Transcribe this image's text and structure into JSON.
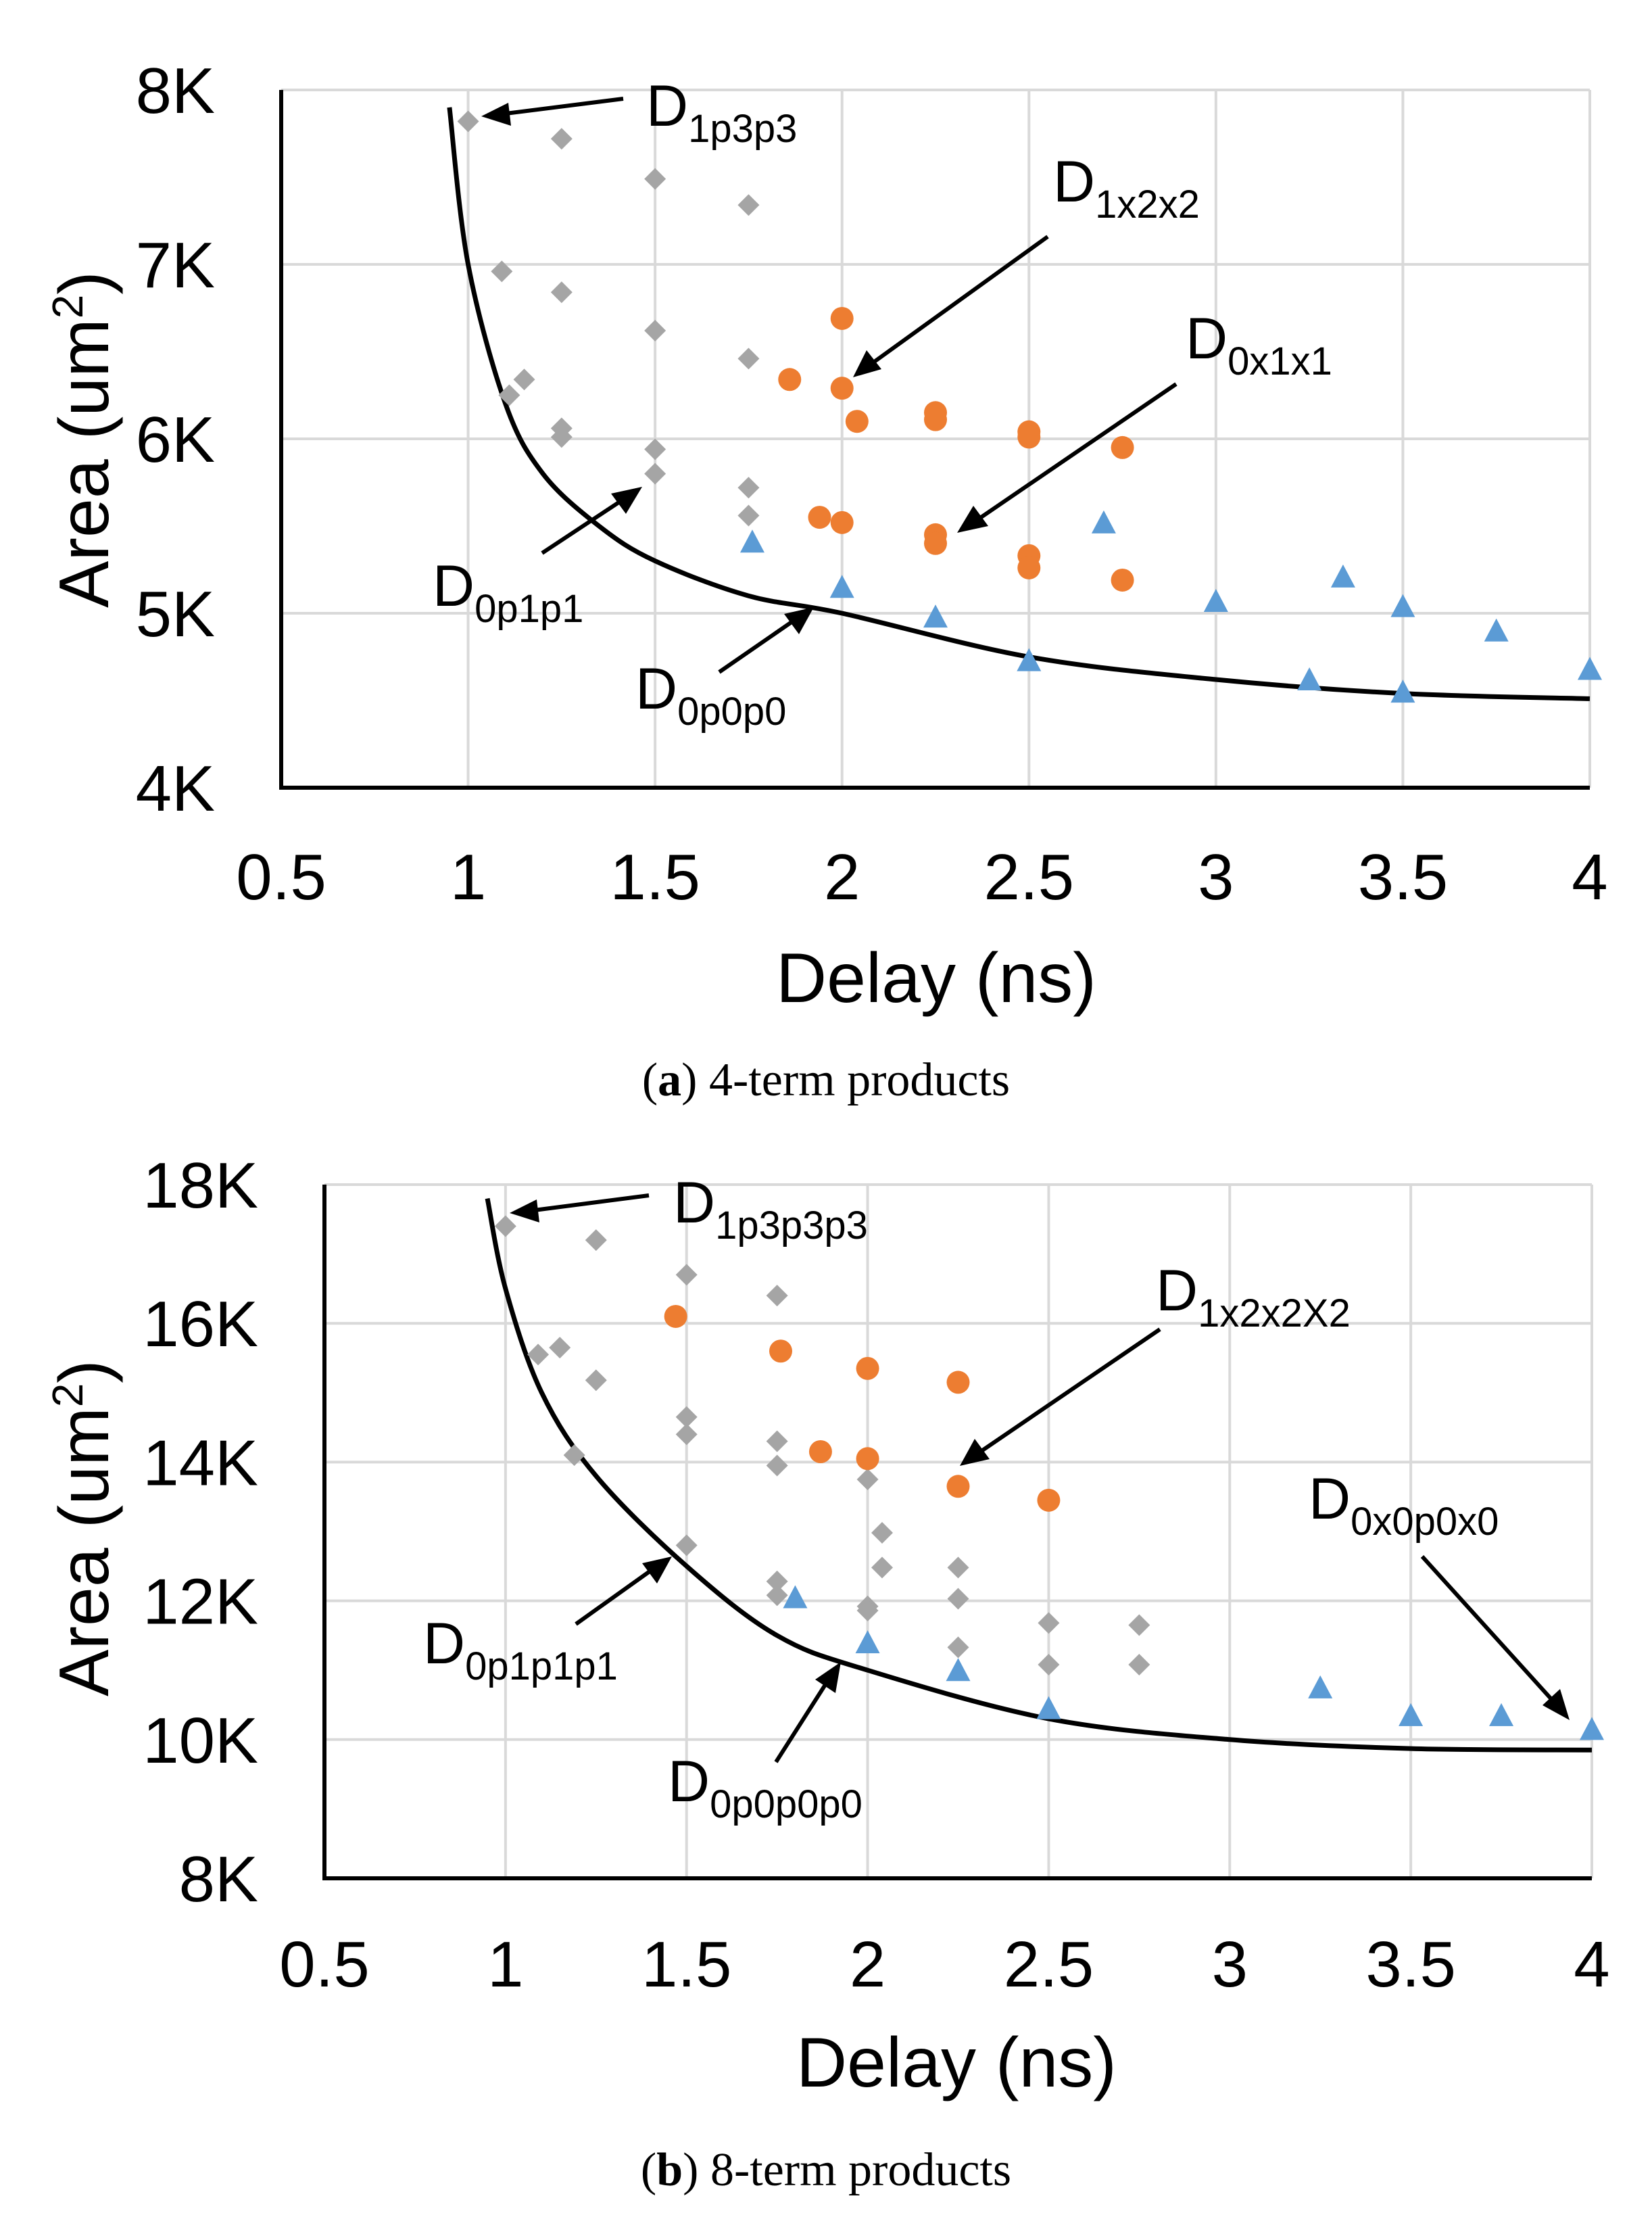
{
  "chart_data": [
    {
      "type": "scatter",
      "panel": "a",
      "caption_label": "a",
      "caption_text": "4-term products",
      "xlabel": "Delay (ns)",
      "ylabel": "Area (um",
      "ylabel_sup": "2",
      "ylabel_close": ")",
      "xlim": [
        0.5,
        4
      ],
      "ylim": [
        4000,
        8000
      ],
      "xticks": [
        0.5,
        1,
        1.5,
        2,
        2.5,
        3,
        3.5,
        4
      ],
      "xtick_labels": [
        "0.5",
        "1",
        "1.5",
        "2",
        "2.5",
        "3",
        "3.5",
        "4"
      ],
      "yticks": [
        4000,
        5000,
        6000,
        7000,
        8000
      ],
      "ytick_labels": [
        "4K",
        "5K",
        "6K",
        "7K",
        "8K"
      ],
      "grid": true,
      "colors": {
        "gray": "#a5a5a5",
        "orange": "#ed7d31",
        "blue": "#5b9bd5",
        "curve": "#000000"
      },
      "series": [
        {
          "name": "gray",
          "marker": "diamond",
          "x": [
            1.0,
            1.25,
            1.5,
            1.75,
            1.09,
            1.25,
            1.5,
            1.75,
            1.15,
            1.11,
            1.25,
            1.25,
            1.5,
            1.5,
            1.75,
            1.75
          ],
          "y": [
            7820,
            7720,
            7490,
            7340,
            6960,
            6840,
            6620,
            6460,
            6340,
            6250,
            6060,
            6010,
            5940,
            5800,
            5720,
            5560
          ]
        },
        {
          "name": "orange",
          "marker": "circle",
          "x": [
            2.0,
            1.86,
            2.0,
            2.04,
            2.25,
            2.25,
            2.5,
            2.5,
            2.75,
            1.94,
            2.0,
            2.25,
            2.25,
            2.5,
            2.5,
            2.75
          ],
          "y": [
            6690,
            6340,
            6290,
            6100,
            6150,
            6110,
            6040,
            6010,
            5950,
            5550,
            5520,
            5450,
            5400,
            5330,
            5260,
            5190
          ]
        },
        {
          "name": "blue",
          "marker": "triangle",
          "x": [
            1.76,
            2.0,
            2.25,
            2.5,
            2.7,
            3.0,
            3.25,
            3.34,
            3.5,
            3.5,
            3.75,
            4.0
          ],
          "y": [
            5410,
            5150,
            4980,
            4730,
            5520,
            5070,
            4620,
            5210,
            5040,
            4550,
            4900,
            4680
          ]
        }
      ],
      "curve": {
        "x": [
          0.95,
          1.0,
          1.1,
          1.2,
          1.35,
          1.5,
          1.75,
          2.0,
          2.5,
          3.0,
          3.5,
          4.0
        ],
        "y": [
          7900,
          7000,
          6200,
          5800,
          5500,
          5300,
          5100,
          5000,
          4750,
          4620,
          4540,
          4510
        ]
      },
      "annotations": [
        {
          "base": "D",
          "sub": "1p3p3"
        },
        {
          "base": "D",
          "sub": "1x2x2"
        },
        {
          "base": "D",
          "sub": "0x1x1"
        },
        {
          "base": "D",
          "sub": "0p1p1"
        },
        {
          "base": "D",
          "sub": "0p0p0"
        }
      ]
    },
    {
      "type": "scatter",
      "panel": "b",
      "caption_label": "b",
      "caption_text": "8-term products",
      "xlabel": "Delay (ns)",
      "ylabel": "Area (um",
      "ylabel_sup": "2",
      "ylabel_close": ")",
      "xlim": [
        0.5,
        4
      ],
      "ylim": [
        8000,
        18000
      ],
      "xticks": [
        0.5,
        1,
        1.5,
        2,
        2.5,
        3,
        3.5,
        4
      ],
      "xtick_labels": [
        "0.5",
        "1",
        "1.5",
        "2",
        "2.5",
        "3",
        "3.5",
        "4"
      ],
      "yticks": [
        8000,
        10000,
        12000,
        14000,
        16000,
        18000
      ],
      "ytick_labels": [
        "8K",
        "10K",
        "12K",
        "14K",
        "16K",
        "18K"
      ],
      "grid": true,
      "colors": {
        "gray": "#a5a5a5",
        "orange": "#ed7d31",
        "blue": "#5b9bd5",
        "curve": "#000000"
      },
      "series": [
        {
          "name": "gray",
          "marker": "diamond",
          "x": [
            1.0,
            1.25,
            1.5,
            1.75,
            1.09,
            1.15,
            1.25,
            1.5,
            1.5,
            1.75,
            1.75,
            1.19,
            2.0,
            2.04,
            1.5,
            2.04,
            2.25,
            1.75,
            1.75,
            2.25,
            2.0,
            2.0,
            2.5,
            2.75,
            2.25,
            2.5,
            2.75
          ],
          "y": [
            17400,
            17200,
            16700,
            16400,
            15550,
            15650,
            15180,
            14650,
            14400,
            14300,
            13950,
            14100,
            13750,
            12980,
            12800,
            12480,
            12480,
            12280,
            12080,
            12030,
            11920,
            11860,
            11680,
            11650,
            11330,
            11080,
            11080
          ]
        },
        {
          "name": "orange",
          "marker": "circle",
          "x": [
            1.47,
            1.76,
            2.0,
            2.25,
            1.87,
            2.0,
            2.25,
            2.5
          ],
          "y": [
            16100,
            15600,
            15350,
            15150,
            14150,
            14050,
            13650,
            13450
          ]
        },
        {
          "name": "blue",
          "marker": "triangle",
          "x": [
            1.8,
            2.0,
            2.25,
            2.5,
            3.25,
            3.5,
            3.75,
            4.0
          ],
          "y": [
            12050,
            11400,
            11000,
            10450,
            10750,
            10350,
            10350,
            10150
          ]
        },
        {
          "name": "curve",
          "marker": "line",
          "x": [],
          "y": []
        }
      ],
      "curve": {
        "x": [
          0.95,
          1.0,
          1.1,
          1.25,
          1.5,
          1.75,
          2.0,
          2.5,
          3.0,
          3.5,
          4.0
        ],
        "y": [
          17800,
          16500,
          15000,
          13800,
          12500,
          11500,
          11000,
          10300,
          10000,
          9870,
          9850
        ]
      },
      "annotations": [
        {
          "base": "D",
          "sub": "1p3p3p3"
        },
        {
          "base": "D",
          "sub": "1x2x2X2"
        },
        {
          "base": "D",
          "sub": "0x0p0x0"
        },
        {
          "base": "D",
          "sub": "0p1p1p1"
        },
        {
          "base": "D",
          "sub": "0p0p0p0"
        }
      ]
    }
  ]
}
